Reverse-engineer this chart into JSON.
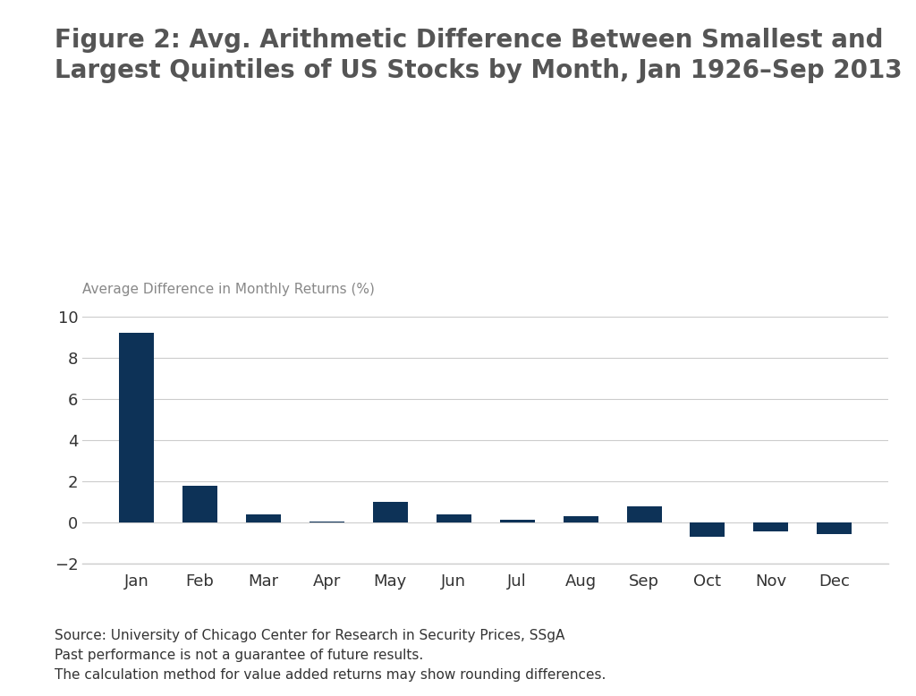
{
  "title": "Figure 2: Avg. Arithmetic Difference Between Smallest and\nLargest Quintiles of US Stocks by Month, Jan 1926–Sep 2013",
  "ylabel": "Average Difference in Monthly Returns (%)",
  "categories": [
    "Jan",
    "Feb",
    "Mar",
    "Apr",
    "May",
    "Jun",
    "Jul",
    "Aug",
    "Sep",
    "Oct",
    "Nov",
    "Dec"
  ],
  "values": [
    9.2,
    1.8,
    0.4,
    0.05,
    1.0,
    0.4,
    0.15,
    0.3,
    0.8,
    -0.7,
    -0.45,
    -0.55
  ],
  "bar_color": "#0d3257",
  "ylim": [
    -2,
    10.5
  ],
  "yticks": [
    -2,
    0,
    2,
    4,
    6,
    8,
    10
  ],
  "background_color": "#ffffff",
  "grid_color": "#cccccc",
  "footnote_lines": [
    "Source: University of Chicago Center for Research in Security Prices, SSgA",
    "Past performance is not a guarantee of future results.",
    "The calculation method for value added returns may show rounding differences."
  ],
  "title_fontsize": 20,
  "ylabel_fontsize": 11,
  "tick_fontsize": 13,
  "footnote_fontsize": 11
}
